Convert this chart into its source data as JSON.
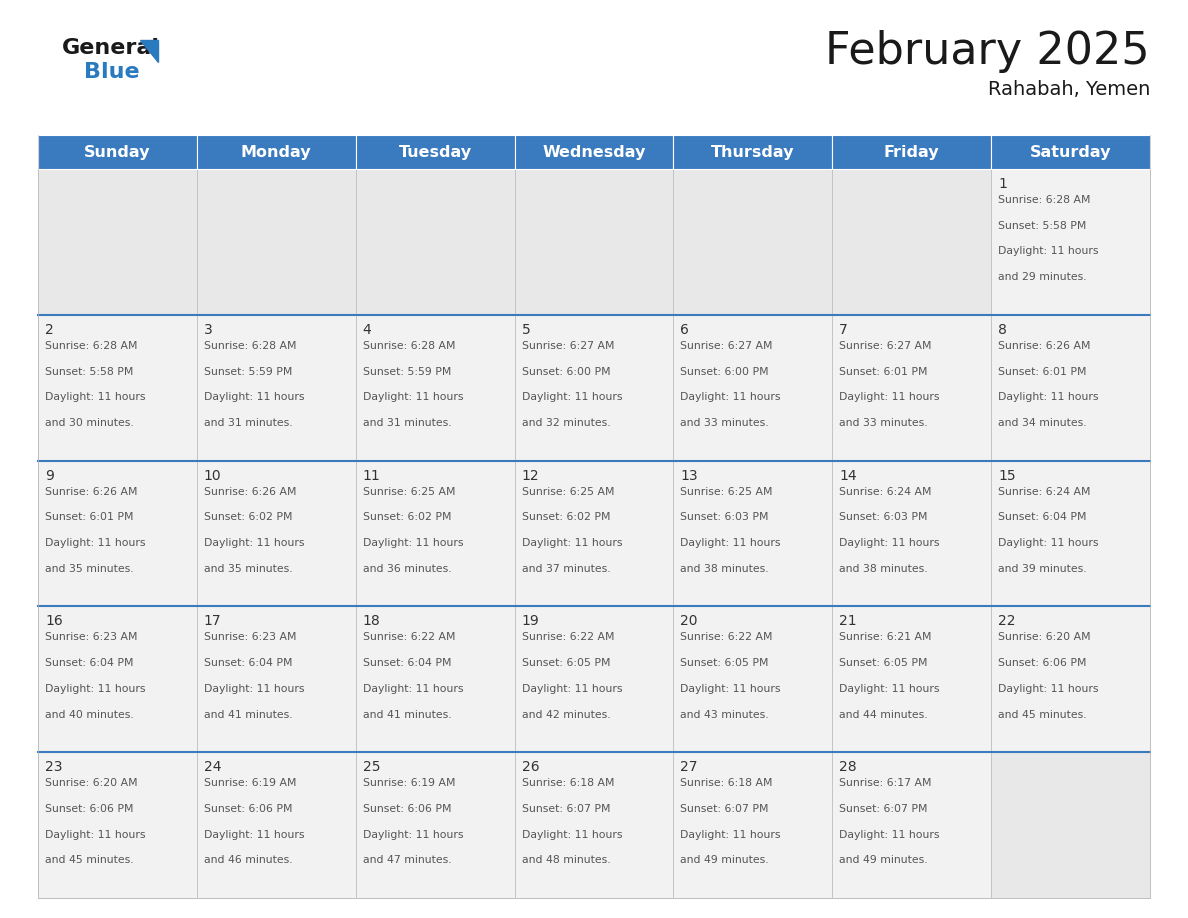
{
  "title": "February 2025",
  "subtitle": "Rahabah, Yemen",
  "header_color": "#3a7abf",
  "header_text_color": "#ffffff",
  "cell_bg_color": "#f2f2f2",
  "empty_cell_bg_color": "#e8e8e8",
  "border_color": "#bbbbbb",
  "row_divider_color": "#3a7abf",
  "day_headers": [
    "Sunday",
    "Monday",
    "Tuesday",
    "Wednesday",
    "Thursday",
    "Friday",
    "Saturday"
  ],
  "title_fontsize": 32,
  "subtitle_fontsize": 14,
  "header_fontsize": 11.5,
  "day_num_fontsize": 10,
  "info_fontsize": 7.8,
  "logo_color1": "#1a1a1a",
  "logo_color2": "#2a7abf",
  "logo_triangle_color": "#2a7abf",
  "calendar_data": [
    [
      null,
      null,
      null,
      null,
      null,
      null,
      {
        "day": 1,
        "sunrise": "6:28 AM",
        "sunset": "5:58 PM",
        "daylight": "11 hours and 29 minutes."
      }
    ],
    [
      {
        "day": 2,
        "sunrise": "6:28 AM",
        "sunset": "5:58 PM",
        "daylight": "11 hours and 30 minutes."
      },
      {
        "day": 3,
        "sunrise": "6:28 AM",
        "sunset": "5:59 PM",
        "daylight": "11 hours and 31 minutes."
      },
      {
        "day": 4,
        "sunrise": "6:28 AM",
        "sunset": "5:59 PM",
        "daylight": "11 hours and 31 minutes."
      },
      {
        "day": 5,
        "sunrise": "6:27 AM",
        "sunset": "6:00 PM",
        "daylight": "11 hours and 32 minutes."
      },
      {
        "day": 6,
        "sunrise": "6:27 AM",
        "sunset": "6:00 PM",
        "daylight": "11 hours and 33 minutes."
      },
      {
        "day": 7,
        "sunrise": "6:27 AM",
        "sunset": "6:01 PM",
        "daylight": "11 hours and 33 minutes."
      },
      {
        "day": 8,
        "sunrise": "6:26 AM",
        "sunset": "6:01 PM",
        "daylight": "11 hours and 34 minutes."
      }
    ],
    [
      {
        "day": 9,
        "sunrise": "6:26 AM",
        "sunset": "6:01 PM",
        "daylight": "11 hours and 35 minutes."
      },
      {
        "day": 10,
        "sunrise": "6:26 AM",
        "sunset": "6:02 PM",
        "daylight": "11 hours and 35 minutes."
      },
      {
        "day": 11,
        "sunrise": "6:25 AM",
        "sunset": "6:02 PM",
        "daylight": "11 hours and 36 minutes."
      },
      {
        "day": 12,
        "sunrise": "6:25 AM",
        "sunset": "6:02 PM",
        "daylight": "11 hours and 37 minutes."
      },
      {
        "day": 13,
        "sunrise": "6:25 AM",
        "sunset": "6:03 PM",
        "daylight": "11 hours and 38 minutes."
      },
      {
        "day": 14,
        "sunrise": "6:24 AM",
        "sunset": "6:03 PM",
        "daylight": "11 hours and 38 minutes."
      },
      {
        "day": 15,
        "sunrise": "6:24 AM",
        "sunset": "6:04 PM",
        "daylight": "11 hours and 39 minutes."
      }
    ],
    [
      {
        "day": 16,
        "sunrise": "6:23 AM",
        "sunset": "6:04 PM",
        "daylight": "11 hours and 40 minutes."
      },
      {
        "day": 17,
        "sunrise": "6:23 AM",
        "sunset": "6:04 PM",
        "daylight": "11 hours and 41 minutes."
      },
      {
        "day": 18,
        "sunrise": "6:22 AM",
        "sunset": "6:04 PM",
        "daylight": "11 hours and 41 minutes."
      },
      {
        "day": 19,
        "sunrise": "6:22 AM",
        "sunset": "6:05 PM",
        "daylight": "11 hours and 42 minutes."
      },
      {
        "day": 20,
        "sunrise": "6:22 AM",
        "sunset": "6:05 PM",
        "daylight": "11 hours and 43 minutes."
      },
      {
        "day": 21,
        "sunrise": "6:21 AM",
        "sunset": "6:05 PM",
        "daylight": "11 hours and 44 minutes."
      },
      {
        "day": 22,
        "sunrise": "6:20 AM",
        "sunset": "6:06 PM",
        "daylight": "11 hours and 45 minutes."
      }
    ],
    [
      {
        "day": 23,
        "sunrise": "6:20 AM",
        "sunset": "6:06 PM",
        "daylight": "11 hours and 45 minutes."
      },
      {
        "day": 24,
        "sunrise": "6:19 AM",
        "sunset": "6:06 PM",
        "daylight": "11 hours and 46 minutes."
      },
      {
        "day": 25,
        "sunrise": "6:19 AM",
        "sunset": "6:06 PM",
        "daylight": "11 hours and 47 minutes."
      },
      {
        "day": 26,
        "sunrise": "6:18 AM",
        "sunset": "6:07 PM",
        "daylight": "11 hours and 48 minutes."
      },
      {
        "day": 27,
        "sunrise": "6:18 AM",
        "sunset": "6:07 PM",
        "daylight": "11 hours and 49 minutes."
      },
      {
        "day": 28,
        "sunrise": "6:17 AM",
        "sunset": "6:07 PM",
        "daylight": "11 hours and 49 minutes."
      },
      null
    ]
  ]
}
